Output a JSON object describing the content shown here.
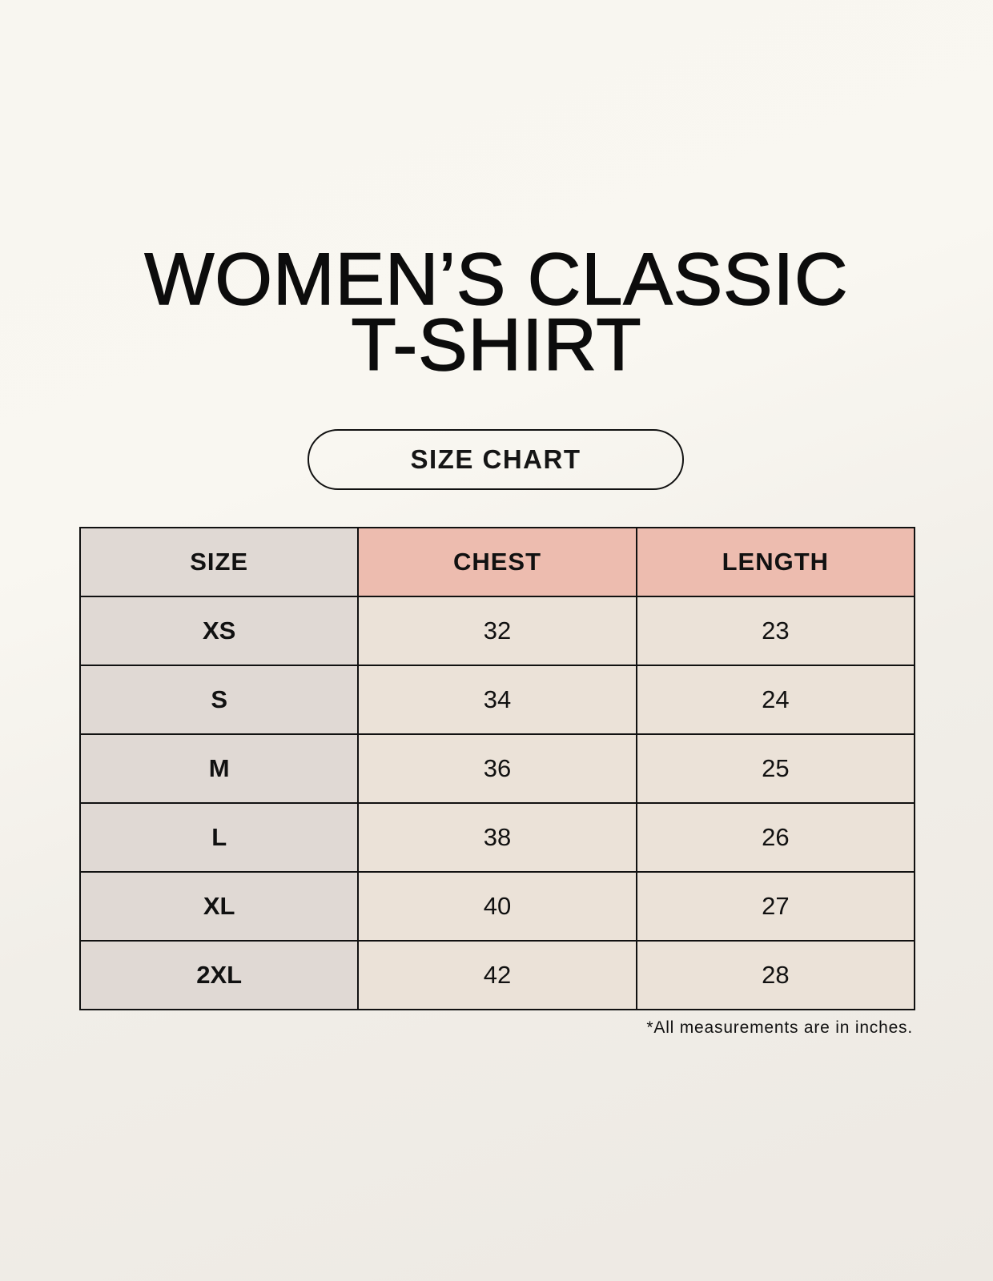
{
  "title": {
    "line1": "WOMEN’S CLASSIC",
    "line2": "T-SHIRT"
  },
  "subtitle": "SIZE CHART",
  "table": {
    "headers": [
      "SIZE",
      "CHEST",
      "LENGTH"
    ],
    "rows": [
      [
        "XS",
        "32",
        "23"
      ],
      [
        "S",
        "34",
        "24"
      ],
      [
        "M",
        "36",
        "25"
      ],
      [
        "L",
        "38",
        "26"
      ],
      [
        "XL",
        "40",
        "27"
      ],
      [
        "2XL",
        "42",
        "28"
      ]
    ]
  },
  "footnote": "*All measurements are in inches.",
  "colors": {
    "size_column": "#e0d9d4",
    "header_accent": "#edbcaf",
    "cells": "#ebe2d8"
  }
}
